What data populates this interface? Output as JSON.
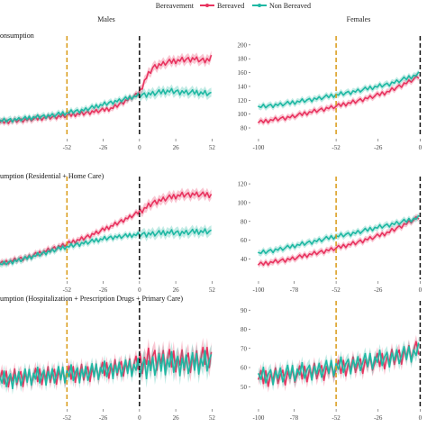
{
  "legend": {
    "title": "Bereavement",
    "items": [
      {
        "label": "Bereaved",
        "color": "#e8335f"
      },
      {
        "label": "Non Bereaved",
        "color": "#1fb8a3"
      }
    ]
  },
  "facets": {
    "left": "Males",
    "right": "Females"
  },
  "chart_data": [
    {
      "type": "line",
      "row": 0,
      "facet": "Males",
      "title": "onsumption",
      "x_ticks": [
        -52,
        -26,
        0,
        26,
        52
      ],
      "xlim": [
        -100,
        55
      ],
      "ylim": [
        80,
        205
      ],
      "vlines": [
        {
          "x": -52,
          "style": "orange-dashed"
        },
        {
          "x": 0,
          "style": "black-dashed"
        }
      ],
      "series": [
        {
          "name": "Bereaved",
          "color": "#e8335f",
          "x": [
            -100,
            -80,
            -60,
            -40,
            -20,
            0,
            4,
            10,
            20,
            30,
            40,
            48,
            52
          ],
          "y": [
            88,
            92,
            96,
            101,
            108,
            130,
            150,
            168,
            175,
            178,
            180,
            176,
            185
          ]
        },
        {
          "name": "Non Bereaved",
          "color": "#1fb8a3",
          "x": [
            -100,
            -80,
            -60,
            -40,
            -20,
            0,
            10,
            20,
            30,
            40,
            52
          ],
          "y": [
            90,
            94,
            99,
            106,
            117,
            127,
            130,
            133,
            132,
            131,
            129
          ]
        }
      ]
    },
    {
      "type": "line",
      "row": 0,
      "facet": "Females",
      "title": "",
      "x_ticks": [
        -100,
        -52,
        -26,
        0
      ],
      "y_ticks": [
        80,
        100,
        120,
        140,
        160,
        180,
        200
      ],
      "xlim": [
        -105,
        2
      ],
      "ylim": [
        80,
        205
      ],
      "vlines": [
        {
          "x": -52,
          "style": "orange-dashed"
        },
        {
          "x": 0,
          "style": "black-dashed"
        }
      ],
      "series": [
        {
          "name": "Bereaved",
          "color": "#e8335f",
          "x": [
            -100,
            -80,
            -60,
            -40,
            -20,
            0
          ],
          "y": [
            88,
            96,
            107,
            118,
            132,
            155
          ]
        },
        {
          "name": "Non Bereaved",
          "color": "#1fb8a3",
          "x": [
            -100,
            -80,
            -60,
            -40,
            -20,
            0
          ],
          "y": [
            110,
            116,
            124,
            133,
            143,
            158
          ]
        }
      ]
    },
    {
      "type": "line",
      "row": 1,
      "facet": "Males",
      "title": "umption (Residential + Home Care)",
      "x_ticks": [
        -52,
        -26,
        0,
        26,
        52
      ],
      "xlim": [
        -100,
        55
      ],
      "ylim": [
        28,
        122
      ],
      "vlines": [
        {
          "x": -52,
          "style": "orange-dashed"
        },
        {
          "x": 0,
          "style": "black-dashed"
        }
      ],
      "series": [
        {
          "name": "Bereaved",
          "color": "#e8335f",
          "x": [
            -100,
            -80,
            -60,
            -40,
            -20,
            0,
            10,
            20,
            30,
            40,
            52
          ],
          "y": [
            35,
            42,
            52,
            62,
            75,
            90,
            100,
            105,
            108,
            109,
            108
          ]
        },
        {
          "name": "Non Bereaved",
          "color": "#1fb8a3",
          "x": [
            -100,
            -80,
            -60,
            -40,
            -20,
            0,
            10,
            20,
            30,
            40,
            52
          ],
          "y": [
            34,
            41,
            50,
            57,
            63,
            66,
            67,
            68,
            68,
            69,
            69
          ]
        }
      ]
    },
    {
      "type": "line",
      "row": 1,
      "facet": "Females",
      "title": "",
      "x_ticks": [
        -100,
        -78,
        -52,
        -26,
        0
      ],
      "y_ticks": [
        40,
        60,
        80,
        100,
        120
      ],
      "xlim": [
        -105,
        2
      ],
      "ylim": [
        28,
        122
      ],
      "vlines": [
        {
          "x": -52,
          "style": "orange-dashed"
        },
        {
          "x": 0,
          "style": "black-dashed"
        }
      ],
      "series": [
        {
          "name": "Bereaved",
          "color": "#e8335f",
          "x": [
            -100,
            -80,
            -60,
            -40,
            -20,
            0
          ],
          "y": [
            34,
            40,
            48,
            57,
            68,
            85
          ]
        },
        {
          "name": "Non Bereaved",
          "color": "#1fb8a3",
          "x": [
            -100,
            -80,
            -60,
            -40,
            -20,
            0
          ],
          "y": [
            46,
            53,
            61,
            68,
            76,
            84
          ]
        }
      ]
    },
    {
      "type": "line",
      "row": 2,
      "facet": "Males",
      "title": "umption (Hospitalization + Prescription Drugs + Primary Care)",
      "x_ticks": [
        -52,
        -26,
        0,
        26,
        52
      ],
      "xlim": [
        -100,
        55
      ],
      "ylim": [
        44,
        92
      ],
      "vlines": [
        {
          "x": -52,
          "style": "orange-dashed"
        },
        {
          "x": 0,
          "style": "black-dashed"
        }
      ],
      "series": [
        {
          "name": "Bereaved",
          "color": "#e8335f",
          "x": [
            -100,
            -80,
            -60,
            -40,
            -20,
            0,
            10,
            20,
            30,
            40,
            52
          ],
          "y": [
            54,
            55,
            56,
            57,
            59,
            62,
            65,
            64,
            63,
            64,
            66
          ]
        },
        {
          "name": "Non Bereaved",
          "color": "#1fb8a3",
          "x": [
            -100,
            -80,
            -60,
            -40,
            -20,
            0,
            10,
            20,
            30,
            40,
            52
          ],
          "y": [
            53,
            55,
            56,
            57,
            59,
            60,
            61,
            62,
            62,
            62,
            63
          ]
        }
      ]
    },
    {
      "type": "line",
      "row": 2,
      "facet": "Females",
      "title": "",
      "x_ticks": [
        -100,
        -78,
        -52,
        -26,
        0
      ],
      "y_ticks": [
        50,
        60,
        70,
        80,
        90
      ],
      "xlim": [
        -105,
        2
      ],
      "ylim": [
        44,
        92
      ],
      "vlines": [
        {
          "x": -52,
          "style": "orange-dashed"
        },
        {
          "x": 0,
          "style": "black-dashed"
        }
      ],
      "series": [
        {
          "name": "Bereaved",
          "color": "#e8335f",
          "x": [
            -100,
            -80,
            -60,
            -40,
            -20,
            0
          ],
          "y": [
            54,
            56,
            58,
            61,
            64,
            70
          ]
        },
        {
          "name": "Non Bereaved",
          "color": "#1fb8a3",
          "x": [
            -100,
            -80,
            -60,
            -40,
            -20,
            0
          ],
          "y": [
            55,
            57,
            59,
            62,
            65,
            68
          ]
        }
      ]
    }
  ]
}
